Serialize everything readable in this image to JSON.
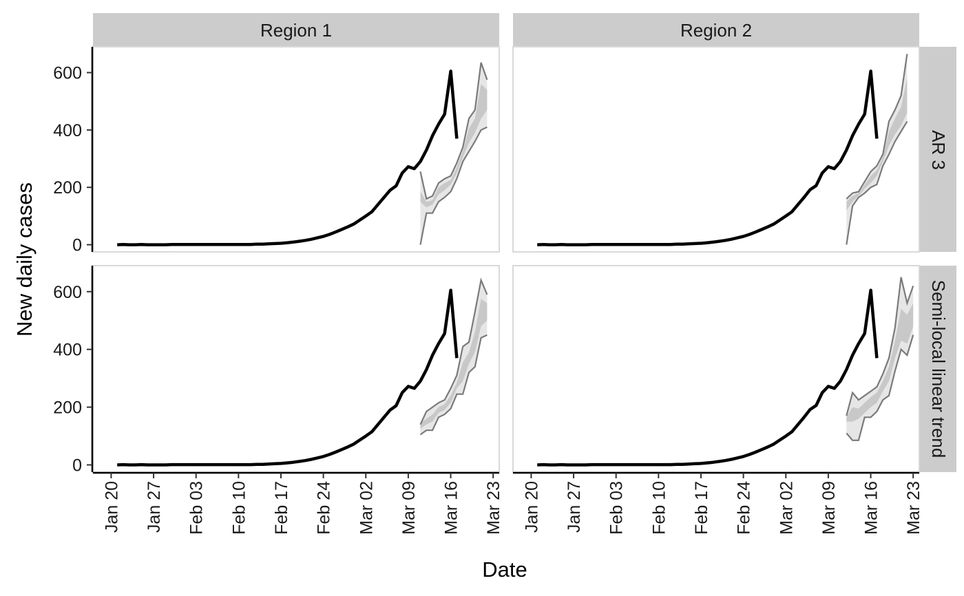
{
  "chart_data": {
    "type": "line",
    "layout": "facet-grid",
    "xlabel": "Date",
    "ylabel": "New daily cases",
    "x_ticks": [
      "2020-01-20",
      "2020-01-27",
      "2020-02-03",
      "2020-02-10",
      "2020-02-17",
      "2020-02-24",
      "2020-03-02",
      "2020-03-09",
      "2020-03-16",
      "2020-03-23"
    ],
    "x_tick_labels": [
      "Jan 20",
      "Jan 27",
      "Feb 03",
      "Feb 10",
      "Feb 17",
      "Feb 24",
      "Mar 02",
      "Mar 09",
      "Mar 16",
      "Mar 23"
    ],
    "xlim": [
      "2020-01-17",
      "2020-03-24"
    ],
    "ylim": [
      -25,
      690
    ],
    "y_ticks": [
      0,
      200,
      400,
      600
    ],
    "y_tick_labels": [
      "0",
      "200",
      "400",
      "600"
    ],
    "grid": false,
    "legend": "none",
    "columns": [
      "Region 1",
      "Region 2"
    ],
    "rows": [
      "AR 3",
      "Semi-local linear trend"
    ],
    "colors": {
      "observed": "#000000",
      "band_inner": "#c8c8c8",
      "band_outer": "#e6e6e6",
      "band_edge": "#7a7a7a",
      "strip": "#cccccc",
      "panel_border": "#d9d9d9"
    },
    "observed": {
      "start_date": "2020-01-21",
      "Region 1": [
        0,
        1,
        0,
        0,
        1,
        0,
        0,
        0,
        0,
        1,
        1,
        1,
        1,
        1,
        1,
        1,
        1,
        1,
        1,
        1,
        1,
        1,
        1,
        2,
        2,
        3,
        4,
        5,
        7,
        9,
        12,
        15,
        19,
        24,
        29,
        36,
        44,
        53,
        62,
        72,
        86,
        100,
        115,
        140,
        165,
        190,
        205,
        250,
        272,
        265,
        290,
        330,
        380,
        420,
        455,
        605,
        370
      ],
      "Region 2": [
        0,
        1,
        0,
        0,
        1,
        0,
        0,
        0,
        0,
        1,
        1,
        1,
        1,
        1,
        1,
        1,
        1,
        1,
        1,
        1,
        1,
        1,
        1,
        2,
        2,
        3,
        4,
        5,
        7,
        9,
        12,
        15,
        19,
        24,
        29,
        36,
        44,
        53,
        62,
        72,
        86,
        100,
        115,
        140,
        165,
        192,
        206,
        250,
        272,
        265,
        290,
        330,
        380,
        420,
        455,
        605,
        370
      ]
    },
    "forecasts": [
      {
        "column": "Region 1",
        "row": "AR 3",
        "start_date": "2020-03-11",
        "outer_lower": [
          0,
          110,
          110,
          150,
          165,
          185,
          230,
          290,
          325,
          360,
          400,
          410
        ],
        "outer_upper": [
          255,
          160,
          170,
          215,
          230,
          240,
          285,
          340,
          440,
          470,
          635,
          575
        ],
        "inner_lower": [
          150,
          130,
          140,
          175,
          190,
          210,
          250,
          305,
          355,
          390,
          440,
          470
        ],
        "inner_upper": [
          185,
          150,
          155,
          200,
          215,
          225,
          270,
          325,
          405,
          440,
          560,
          540
        ]
      },
      {
        "column": "Region 2",
        "row": "AR 3",
        "start_date": "2020-03-12",
        "outer_lower": [
          0,
          135,
          165,
          180,
          200,
          210,
          275,
          315,
          360,
          395,
          430
        ],
        "outer_upper": [
          160,
          180,
          185,
          220,
          255,
          275,
          315,
          430,
          470,
          520,
          665
        ],
        "inner_lower": [
          120,
          150,
          170,
          195,
          215,
          240,
          290,
          345,
          385,
          415,
          460
        ],
        "inner_upper": [
          150,
          170,
          180,
          210,
          240,
          260,
          305,
          395,
          440,
          480,
          580
        ]
      },
      {
        "column": "Region 1",
        "row": "Semi-local linear trend",
        "start_date": "2020-03-11",
        "outer_lower": [
          105,
          120,
          120,
          165,
          175,
          195,
          245,
          245,
          320,
          340,
          440,
          450
        ],
        "outer_upper": [
          140,
          185,
          200,
          215,
          225,
          265,
          310,
          410,
          425,
          530,
          640,
          590
        ],
        "inner_lower": [
          125,
          140,
          150,
          180,
          190,
          215,
          265,
          290,
          350,
          390,
          480,
          500
        ],
        "inner_upper": [
          145,
          160,
          175,
          200,
          210,
          240,
          285,
          355,
          390,
          460,
          575,
          560
        ]
      },
      {
        "column": "Region 2",
        "row": "Semi-local linear trend",
        "start_date": "2020-03-12",
        "outer_lower": [
          110,
          85,
          85,
          165,
          165,
          185,
          225,
          240,
          325,
          400,
          380,
          450
        ],
        "outer_upper": [
          170,
          250,
          225,
          240,
          255,
          270,
          315,
          370,
          475,
          650,
          560,
          620
        ],
        "inner_lower": [
          150,
          150,
          160,
          180,
          200,
          215,
          255,
          290,
          370,
          430,
          420,
          480
        ],
        "inner_upper": [
          165,
          200,
          195,
          215,
          235,
          250,
          290,
          340,
          430,
          540,
          520,
          560
        ]
      }
    ]
  }
}
